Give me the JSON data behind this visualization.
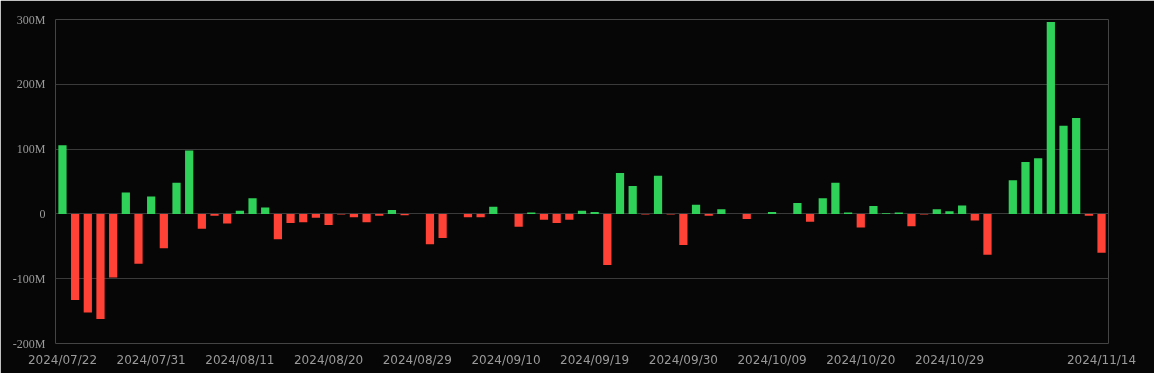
{
  "chart_data": {
    "type": "bar",
    "categories": [
      "2024/07/22",
      null,
      null,
      null,
      null,
      null,
      null,
      "2024/07/31",
      null,
      null,
      null,
      null,
      null,
      null,
      "2024/08/11",
      null,
      null,
      null,
      null,
      null,
      null,
      "2024/08/20",
      null,
      null,
      null,
      null,
      null,
      null,
      "2024/08/29",
      null,
      null,
      null,
      null,
      null,
      null,
      "2024/09/10",
      null,
      null,
      null,
      null,
      null,
      null,
      "2024/09/19",
      null,
      null,
      null,
      null,
      null,
      null,
      "2024/09/30",
      null,
      null,
      null,
      null,
      null,
      null,
      "2024/10/09",
      null,
      null,
      null,
      null,
      null,
      null,
      "2024/10/20",
      null,
      null,
      null,
      null,
      null,
      null,
      "2024/10/29",
      null,
      null,
      null,
      null,
      null,
      null,
      null,
      null,
      null,
      null,
      null,
      "2024/11/14"
    ],
    "values": [
      106,
      -133,
      -152,
      -162,
      -98,
      33,
      -77,
      27,
      -53,
      48,
      98,
      -23,
      -3,
      -15,
      5,
      24,
      10,
      -39,
      -14,
      -13,
      -6,
      -17,
      -1,
      -5,
      -13,
      -3,
      6,
      -2,
      0,
      -47,
      -37,
      0,
      -5,
      -5,
      11,
      0,
      -20,
      2,
      -9,
      -14,
      -9,
      5,
      3,
      -79,
      63,
      43,
      -1,
      59,
      -1,
      -48,
      14,
      -3,
      7,
      0,
      -8,
      0,
      3,
      0,
      17,
      -12,
      24,
      48,
      2,
      -21,
      12,
      1,
      2,
      -19,
      -1,
      7,
      4,
      13,
      -10,
      -63,
      0,
      52,
      80,
      86,
      296,
      136,
      148,
      -3,
      -60
    ],
    "colors": [
      "#2fd158",
      "#ff4136",
      "#ff4136",
      "#ff4136",
      "#ff4136",
      "#2fd158",
      "#ff4136",
      "#2fd158",
      "#ff4136",
      "#2fd158",
      "#2fd158",
      "#ff4136",
      "#ff4136",
      "#ff4136",
      "#2fd158",
      "#2fd158",
      "#2fd158",
      "#ff4136",
      "#ff4136",
      "#ff4136",
      "#ff4136",
      "#ff4136",
      "#ff4136",
      "#ff4136",
      "#ff4136",
      "#ff4136",
      "#2fd158",
      "#ff4136",
      "#2fd158",
      "#ff4136",
      "#ff4136",
      "#2fd158",
      "#ff4136",
      "#ff4136",
      "#2fd158",
      "#2fd158",
      "#ff4136",
      "#2fd158",
      "#ff4136",
      "#ff4136",
      "#ff4136",
      "#2fd158",
      "#2fd158",
      "#ff4136",
      "#2fd158",
      "#2fd158",
      "#ff4136",
      "#2fd158",
      "#ff4136",
      "#ff4136",
      "#2fd158",
      "#ff4136",
      "#2fd158",
      "#2fd158",
      "#ff4136",
      "#2fd158",
      "#2fd158",
      "#2fd158",
      "#2fd158",
      "#ff4136",
      "#2fd158",
      "#2fd158",
      "#2fd158",
      "#ff4136",
      "#2fd158",
      "#2fd158",
      "#2fd158",
      "#ff4136",
      "#ff4136",
      "#2fd158",
      "#2fd158",
      "#2fd158",
      "#ff4136",
      "#ff4136",
      "#2fd158",
      "#2fd158",
      "#2fd158",
      "#2fd158",
      "#2fd158",
      "#2fd158",
      "#2fd158",
      "#ff4136",
      "#ff4136"
    ],
    "ylim": [
      -200,
      300
    ],
    "yticks": [
      {
        "value": -200,
        "label": "-200M"
      },
      {
        "value": -100,
        "label": "-100M"
      },
      {
        "value": 0,
        "label": "0"
      },
      {
        "value": 100,
        "label": "100M"
      },
      {
        "value": 200,
        "label": "200M"
      },
      {
        "value": 300,
        "label": "300M"
      }
    ],
    "grid": "y"
  }
}
